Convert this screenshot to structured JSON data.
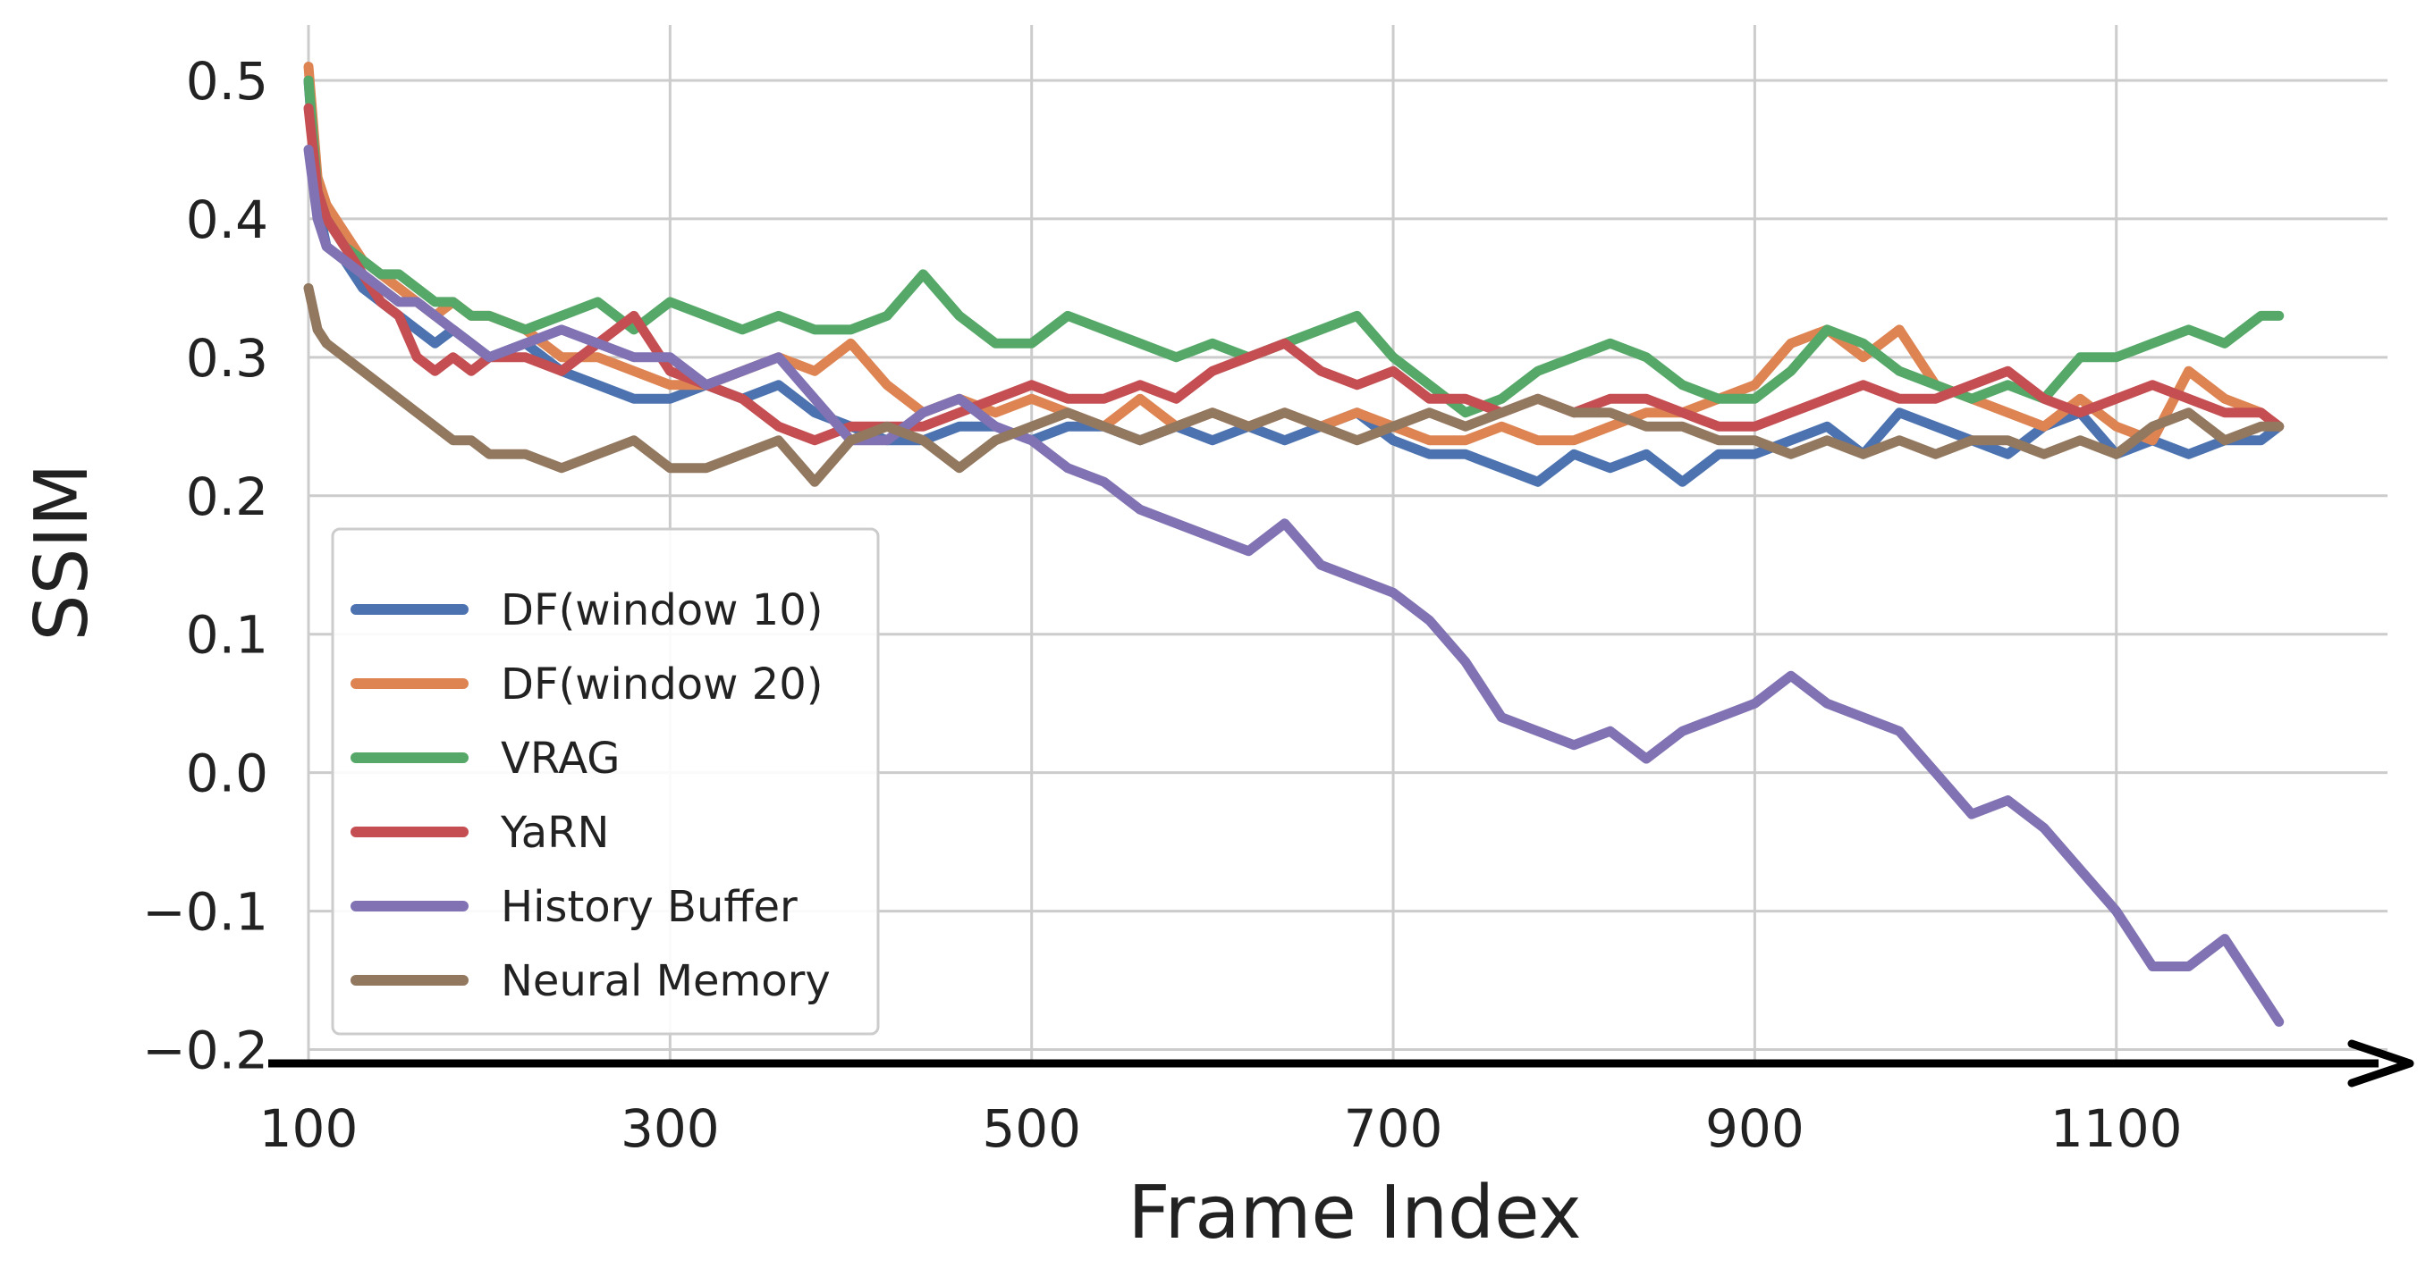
{
  "chart_data": {
    "type": "line",
    "xlabel": "Frame Index",
    "ylabel": "SSIM",
    "xlim": [
      100,
      1250
    ],
    "ylim": [
      -0.21,
      0.54
    ],
    "xticks": [
      100,
      300,
      500,
      700,
      900,
      1100
    ],
    "yticks": [
      -0.2,
      -0.1,
      0.0,
      0.1,
      0.2,
      0.3,
      0.4,
      0.5
    ],
    "ytick_labels": [
      "−0.2",
      "−0.1",
      "0.0",
      "0.1",
      "0.2",
      "0.3",
      "0.4",
      "0.5"
    ],
    "grid": true,
    "legend_position": "lower-left",
    "series": [
      {
        "name": "DF(window 10)",
        "color": "#4c72b0",
        "x": [
          100,
          105,
          110,
          120,
          130,
          140,
          150,
          160,
          170,
          180,
          190,
          200,
          220,
          240,
          260,
          280,
          300,
          320,
          340,
          360,
          380,
          400,
          420,
          440,
          460,
          480,
          500,
          520,
          540,
          560,
          580,
          600,
          620,
          640,
          660,
          680,
          700,
          720,
          740,
          760,
          780,
          800,
          820,
          840,
          860,
          880,
          900,
          920,
          940,
          960,
          980,
          1000,
          1020,
          1040,
          1060,
          1080,
          1100,
          1120,
          1140,
          1160,
          1180,
          1190
        ],
        "y": [
          0.5,
          0.41,
          0.38,
          0.37,
          0.35,
          0.34,
          0.33,
          0.32,
          0.31,
          0.32,
          0.31,
          0.3,
          0.31,
          0.29,
          0.28,
          0.27,
          0.27,
          0.28,
          0.27,
          0.28,
          0.26,
          0.25,
          0.24,
          0.24,
          0.25,
          0.25,
          0.24,
          0.25,
          0.25,
          0.24,
          0.25,
          0.24,
          0.25,
          0.24,
          0.25,
          0.26,
          0.24,
          0.23,
          0.23,
          0.22,
          0.21,
          0.23,
          0.22,
          0.23,
          0.21,
          0.23,
          0.23,
          0.24,
          0.25,
          0.23,
          0.26,
          0.25,
          0.24,
          0.23,
          0.25,
          0.26,
          0.23,
          0.24,
          0.23,
          0.24,
          0.24,
          0.25
        ]
      },
      {
        "name": "DF(window 20)",
        "color": "#dd8452",
        "x": [
          100,
          105,
          110,
          120,
          130,
          140,
          150,
          160,
          170,
          180,
          190,
          200,
          220,
          240,
          260,
          280,
          300,
          320,
          340,
          360,
          380,
          400,
          420,
          440,
          460,
          480,
          500,
          520,
          540,
          560,
          580,
          600,
          620,
          640,
          660,
          680,
          700,
          720,
          740,
          760,
          780,
          800,
          820,
          840,
          860,
          880,
          900,
          920,
          940,
          960,
          980,
          1000,
          1020,
          1040,
          1060,
          1080,
          1100,
          1120,
          1140,
          1160,
          1180,
          1190
        ],
        "y": [
          0.51,
          0.43,
          0.41,
          0.39,
          0.37,
          0.36,
          0.35,
          0.34,
          0.33,
          0.34,
          0.33,
          0.33,
          0.32,
          0.3,
          0.3,
          0.29,
          0.28,
          0.28,
          0.29,
          0.3,
          0.29,
          0.31,
          0.28,
          0.26,
          0.27,
          0.26,
          0.27,
          0.26,
          0.25,
          0.27,
          0.25,
          0.26,
          0.25,
          0.26,
          0.25,
          0.26,
          0.25,
          0.24,
          0.24,
          0.25,
          0.24,
          0.24,
          0.25,
          0.26,
          0.26,
          0.27,
          0.28,
          0.31,
          0.32,
          0.3,
          0.32,
          0.28,
          0.27,
          0.26,
          0.25,
          0.27,
          0.25,
          0.24,
          0.29,
          0.27,
          0.26,
          0.25
        ]
      },
      {
        "name": "VRAG",
        "color": "#55a868",
        "x": [
          100,
          105,
          110,
          120,
          130,
          140,
          150,
          160,
          170,
          180,
          190,
          200,
          220,
          240,
          260,
          280,
          300,
          320,
          340,
          360,
          380,
          400,
          420,
          440,
          460,
          480,
          500,
          520,
          540,
          560,
          580,
          600,
          620,
          640,
          660,
          680,
          700,
          720,
          740,
          760,
          780,
          800,
          820,
          840,
          860,
          880,
          900,
          920,
          940,
          960,
          980,
          1000,
          1020,
          1040,
          1060,
          1080,
          1100,
          1120,
          1140,
          1160,
          1180,
          1190
        ],
        "y": [
          0.5,
          0.42,
          0.4,
          0.38,
          0.37,
          0.36,
          0.36,
          0.35,
          0.34,
          0.34,
          0.33,
          0.33,
          0.32,
          0.33,
          0.34,
          0.32,
          0.34,
          0.33,
          0.32,
          0.33,
          0.32,
          0.32,
          0.33,
          0.36,
          0.33,
          0.31,
          0.31,
          0.33,
          0.32,
          0.31,
          0.3,
          0.31,
          0.3,
          0.31,
          0.32,
          0.33,
          0.3,
          0.28,
          0.26,
          0.27,
          0.29,
          0.3,
          0.31,
          0.3,
          0.28,
          0.27,
          0.27,
          0.29,
          0.32,
          0.31,
          0.29,
          0.28,
          0.27,
          0.28,
          0.27,
          0.3,
          0.3,
          0.31,
          0.32,
          0.31,
          0.33,
          0.33
        ]
      },
      {
        "name": "YaRN",
        "color": "#c44e52",
        "x": [
          100,
          105,
          110,
          120,
          130,
          140,
          150,
          160,
          170,
          180,
          190,
          200,
          220,
          240,
          260,
          280,
          300,
          320,
          340,
          360,
          380,
          400,
          420,
          440,
          460,
          480,
          500,
          520,
          540,
          560,
          580,
          600,
          620,
          640,
          660,
          680,
          700,
          720,
          740,
          760,
          780,
          800,
          820,
          840,
          860,
          880,
          900,
          920,
          940,
          960,
          980,
          1000,
          1020,
          1040,
          1060,
          1080,
          1100,
          1120,
          1140,
          1160,
          1180,
          1190
        ],
        "y": [
          0.48,
          0.42,
          0.4,
          0.38,
          0.36,
          0.34,
          0.33,
          0.3,
          0.29,
          0.3,
          0.29,
          0.3,
          0.3,
          0.29,
          0.31,
          0.33,
          0.29,
          0.28,
          0.27,
          0.25,
          0.24,
          0.25,
          0.25,
          0.25,
          0.26,
          0.27,
          0.28,
          0.27,
          0.27,
          0.28,
          0.27,
          0.29,
          0.3,
          0.31,
          0.29,
          0.28,
          0.29,
          0.27,
          0.27,
          0.26,
          0.27,
          0.26,
          0.27,
          0.27,
          0.26,
          0.25,
          0.25,
          0.26,
          0.27,
          0.28,
          0.27,
          0.27,
          0.28,
          0.29,
          0.27,
          0.26,
          0.27,
          0.28,
          0.27,
          0.26,
          0.26,
          0.25
        ]
      },
      {
        "name": "History Buffer",
        "color": "#8172b3",
        "x": [
          100,
          105,
          110,
          120,
          130,
          140,
          150,
          160,
          170,
          180,
          190,
          200,
          220,
          240,
          260,
          280,
          300,
          320,
          340,
          360,
          380,
          400,
          420,
          440,
          460,
          480,
          500,
          520,
          540,
          560,
          580,
          600,
          620,
          640,
          660,
          680,
          700,
          720,
          740,
          760,
          780,
          800,
          820,
          840,
          860,
          880,
          900,
          920,
          940,
          960,
          980,
          1000,
          1020,
          1040,
          1060,
          1080,
          1100,
          1120,
          1140,
          1160,
          1180,
          1190
        ],
        "y": [
          0.45,
          0.4,
          0.38,
          0.37,
          0.36,
          0.35,
          0.34,
          0.34,
          0.33,
          0.32,
          0.31,
          0.3,
          0.31,
          0.32,
          0.31,
          0.3,
          0.3,
          0.28,
          0.29,
          0.3,
          0.27,
          0.24,
          0.24,
          0.26,
          0.27,
          0.25,
          0.24,
          0.22,
          0.21,
          0.19,
          0.18,
          0.17,
          0.16,
          0.18,
          0.15,
          0.14,
          0.13,
          0.11,
          0.08,
          0.04,
          0.03,
          0.02,
          0.03,
          0.01,
          0.03,
          0.04,
          0.05,
          0.07,
          0.05,
          0.04,
          0.03,
          0.0,
          -0.03,
          -0.02,
          -0.04,
          -0.07,
          -0.1,
          -0.14,
          -0.14,
          -0.12,
          -0.16,
          -0.18
        ]
      },
      {
        "name": "Neural Memory",
        "color": "#937860",
        "x": [
          100,
          105,
          110,
          120,
          130,
          140,
          150,
          160,
          170,
          180,
          190,
          200,
          220,
          240,
          260,
          280,
          300,
          320,
          340,
          360,
          380,
          400,
          420,
          440,
          460,
          480,
          500,
          520,
          540,
          560,
          580,
          600,
          620,
          640,
          660,
          680,
          700,
          720,
          740,
          760,
          780,
          800,
          820,
          840,
          860,
          880,
          900,
          920,
          940,
          960,
          980,
          1000,
          1020,
          1040,
          1060,
          1080,
          1100,
          1120,
          1140,
          1160,
          1180,
          1190
        ],
        "y": [
          0.35,
          0.32,
          0.31,
          0.3,
          0.29,
          0.28,
          0.27,
          0.26,
          0.25,
          0.24,
          0.24,
          0.23,
          0.23,
          0.22,
          0.23,
          0.24,
          0.22,
          0.22,
          0.23,
          0.24,
          0.21,
          0.24,
          0.25,
          0.24,
          0.22,
          0.24,
          0.25,
          0.26,
          0.25,
          0.24,
          0.25,
          0.26,
          0.25,
          0.26,
          0.25,
          0.24,
          0.25,
          0.26,
          0.25,
          0.26,
          0.27,
          0.26,
          0.26,
          0.25,
          0.25,
          0.24,
          0.24,
          0.23,
          0.24,
          0.23,
          0.24,
          0.23,
          0.24,
          0.24,
          0.23,
          0.24,
          0.23,
          0.25,
          0.26,
          0.24,
          0.25,
          0.25
        ]
      }
    ]
  }
}
